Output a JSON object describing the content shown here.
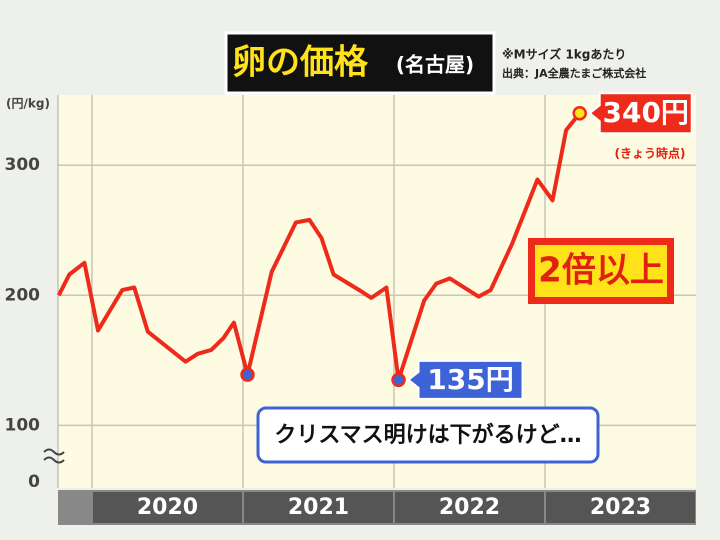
{
  "chart_data": {
    "type": "line",
    "title": "卵の価格",
    "subtitle": "(名古屋)",
    "note": "※Mサイズ 1kgあたり",
    "source": "出典：JA全農たまご株式会社",
    "y_label": "(円/kg)",
    "y_origin_label": "0",
    "color": "#ee2a1b",
    "x": [
      2019.78,
      2019.85,
      2019.95,
      2020.04,
      2020.2,
      2020.28,
      2020.37,
      2020.62,
      2020.7,
      2020.79,
      2020.87,
      2020.94,
      2021.03,
      2021.19,
      2021.35,
      2021.44,
      2021.52,
      2021.6,
      2021.77,
      2021.85,
      2021.95,
      2022.03,
      2022.2,
      2022.28,
      2022.37,
      2022.56,
      2022.64,
      2022.78,
      2022.95,
      2023.05,
      2023.14,
      2023.23
    ],
    "values": [
      200,
      216,
      225,
      173,
      204,
      206,
      172,
      149,
      155,
      158,
      167,
      179,
      139,
      218,
      256,
      258,
      244,
      216,
      204,
      198,
      206,
      135,
      196,
      209,
      213,
      199,
      204,
      239,
      289,
      273,
      327,
      340
    ],
    "value_labels": [
      null,
      null,
      null,
      null,
      null,
      null,
      null,
      null,
      null,
      null,
      null,
      null,
      null,
      null,
      null,
      null,
      null,
      null,
      null,
      null,
      null,
      "135円",
      null,
      null,
      null,
      null,
      null,
      null,
      null,
      null,
      null,
      "340円"
    ],
    "markers": [
      {
        "index": 12,
        "color": "#3d63d6"
      },
      {
        "index": 21,
        "color": "#3d63d6"
      },
      {
        "index": 31,
        "color": "#ffe21a"
      }
    ],
    "xlim": [
      2019.775,
      2024.0
    ],
    "xticks": [
      2020,
      2021,
      2022,
      2023
    ],
    "ylim": [
      68,
      354
    ],
    "yticks": [
      100,
      200,
      300
    ],
    "grid": true,
    "annotations": [
      "(きょう時点)",
      "2倍以上",
      "クリスマス明けは下がるけど…"
    ]
  }
}
